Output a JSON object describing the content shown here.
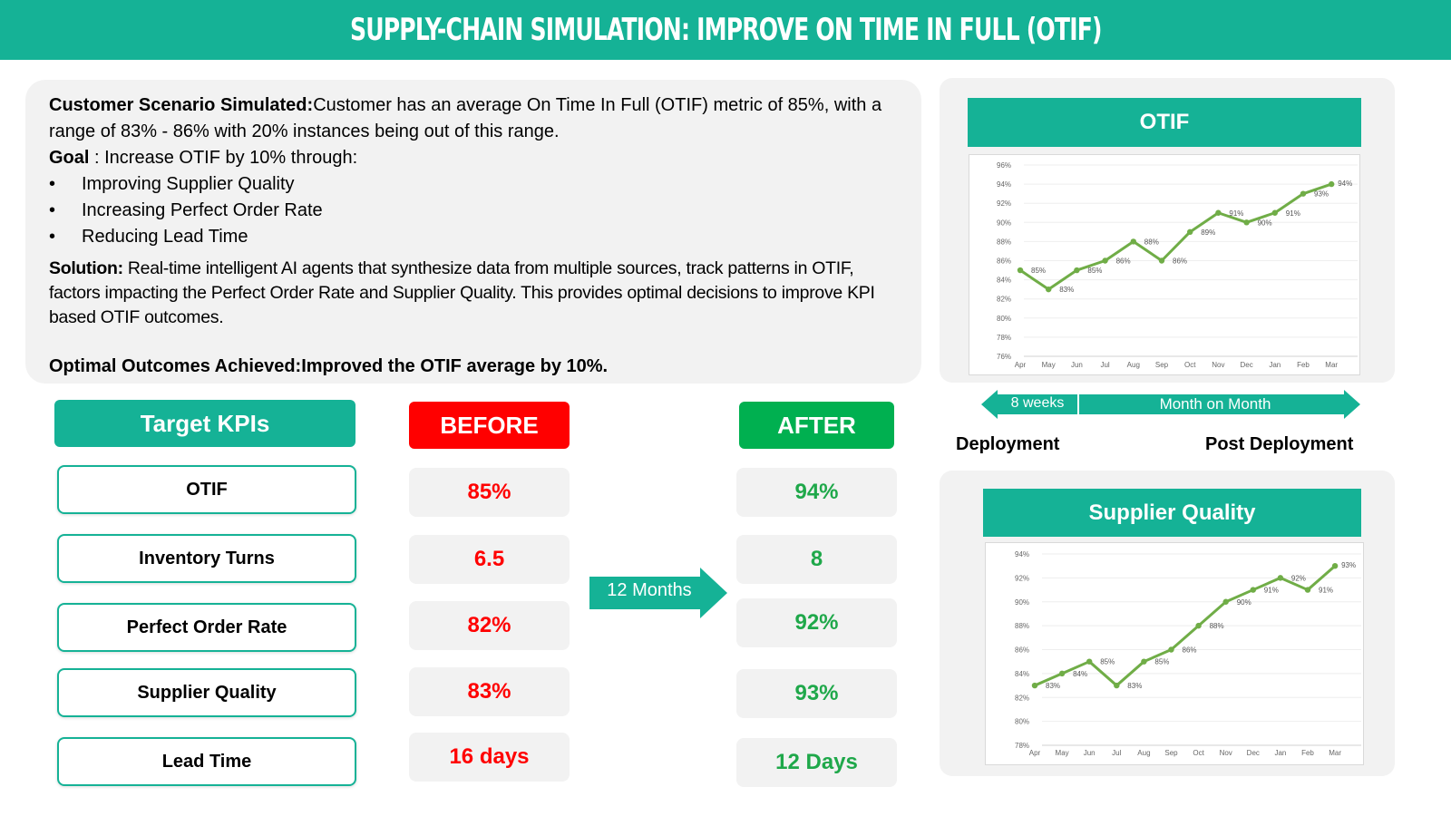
{
  "header": {
    "title": "SUPPLY-CHAIN SIMULATION: IMPROVE ON TIME IN FULL (OTIF)"
  },
  "scenario": {
    "customer_label": "Customer Scenario Simulated:",
    "customer_text": "Customer has an average On Time In Full (OTIF) metric of 85%, with a range of 83% - 86% with 20% instances being out of this range.",
    "goal_label": "Goal",
    "goal_text": " : Increase OTIF by 10% through:",
    "bullets": [
      "Improving Supplier Quality",
      "Increasing Perfect Order Rate",
      "Reducing Lead Time"
    ],
    "solution_label": "Solution:",
    "solution_text": " Real-time intelligent AI agents that synthesize data from multiple sources, track patterns in OTIF, factors impacting the Perfect Order Rate and Supplier Quality. This provides optimal decisions to improve KPI based OTIF outcomes.",
    "outcome_label": "Optimal Outcomes Achieved:",
    "outcome_text": "Improved the OTIF average by 10%."
  },
  "kpis": {
    "header": "Target KPIs",
    "before_header": "BEFORE",
    "after_header": "AFTER",
    "duration": "12 Months",
    "rows": [
      {
        "name": "OTIF",
        "before": "85%",
        "after": "94%"
      },
      {
        "name": "Inventory Turns",
        "before": "6.5",
        "after": "8"
      },
      {
        "name": "Perfect Order Rate",
        "before": "82%",
        "after": "92%"
      },
      {
        "name": "Supplier Quality",
        "before": "83%",
        "after": "93%"
      },
      {
        "name": "Lead Time",
        "before": "16 days",
        "after": "12 Days"
      }
    ],
    "colors": {
      "teal": "#15b296",
      "before": "#ff0000",
      "after": "#00b050"
    }
  },
  "timeline": {
    "deploy_duration": "8 weeks",
    "post_duration": "Month on Month",
    "deploy_label": "Deployment",
    "post_label": "Post Deployment"
  },
  "chart_data": [
    {
      "type": "line",
      "title": "OTIF",
      "categories": [
        "Apr",
        "May",
        "Jun",
        "Jul",
        "Aug",
        "Sep",
        "Oct",
        "Nov",
        "Dec",
        "Jan",
        "Feb",
        "Mar"
      ],
      "values": [
        85,
        83,
        85,
        86,
        88,
        86,
        89,
        91,
        90,
        91,
        93,
        94
      ],
      "ylim": [
        76,
        96
      ],
      "yticks": [
        76,
        78,
        80,
        82,
        84,
        86,
        88,
        90,
        92,
        94,
        96
      ],
      "unit": "%",
      "grid": true,
      "color": "#70ad47"
    },
    {
      "type": "line",
      "title": "Supplier Quality",
      "categories": [
        "Apr",
        "May",
        "Jun",
        "Jul",
        "Aug",
        "Sep",
        "Oct",
        "Nov",
        "Dec",
        "Jan",
        "Feb",
        "Mar"
      ],
      "values": [
        83,
        84,
        85,
        83,
        85,
        86,
        88,
        90,
        91,
        92,
        91,
        93
      ],
      "ylim": [
        78,
        94
      ],
      "yticks": [
        78,
        80,
        82,
        84,
        86,
        88,
        90,
        92,
        94
      ],
      "unit": "%",
      "grid": true,
      "color": "#70ad47"
    }
  ]
}
